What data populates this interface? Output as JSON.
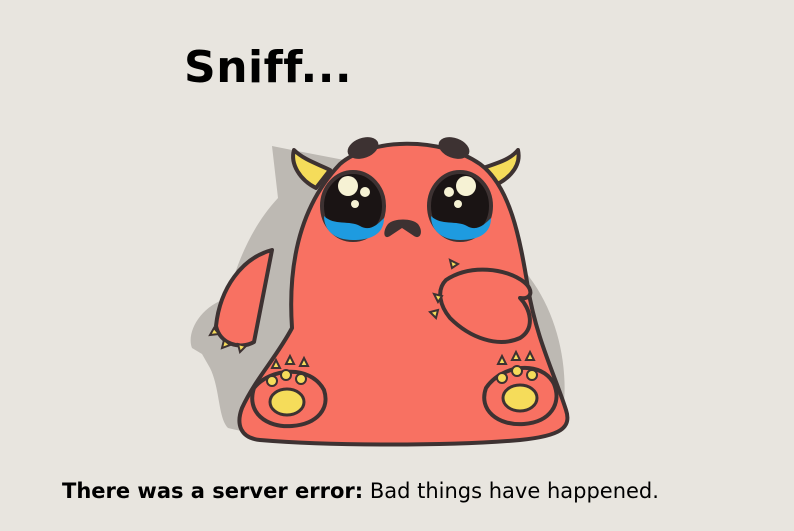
{
  "page": {
    "title": "Sniff...",
    "error_lead": "There was a server error:",
    "error_detail": "Bad things have happened."
  },
  "illustration": {
    "subject": "crying-red-monster",
    "colors": {
      "background": "#e8e5df",
      "body": "#f87162",
      "outline": "#3d3232",
      "horns_and_paws": "#f5dc5a",
      "tears": "#1e9be0",
      "shadow": "#bdb9b3"
    }
  }
}
